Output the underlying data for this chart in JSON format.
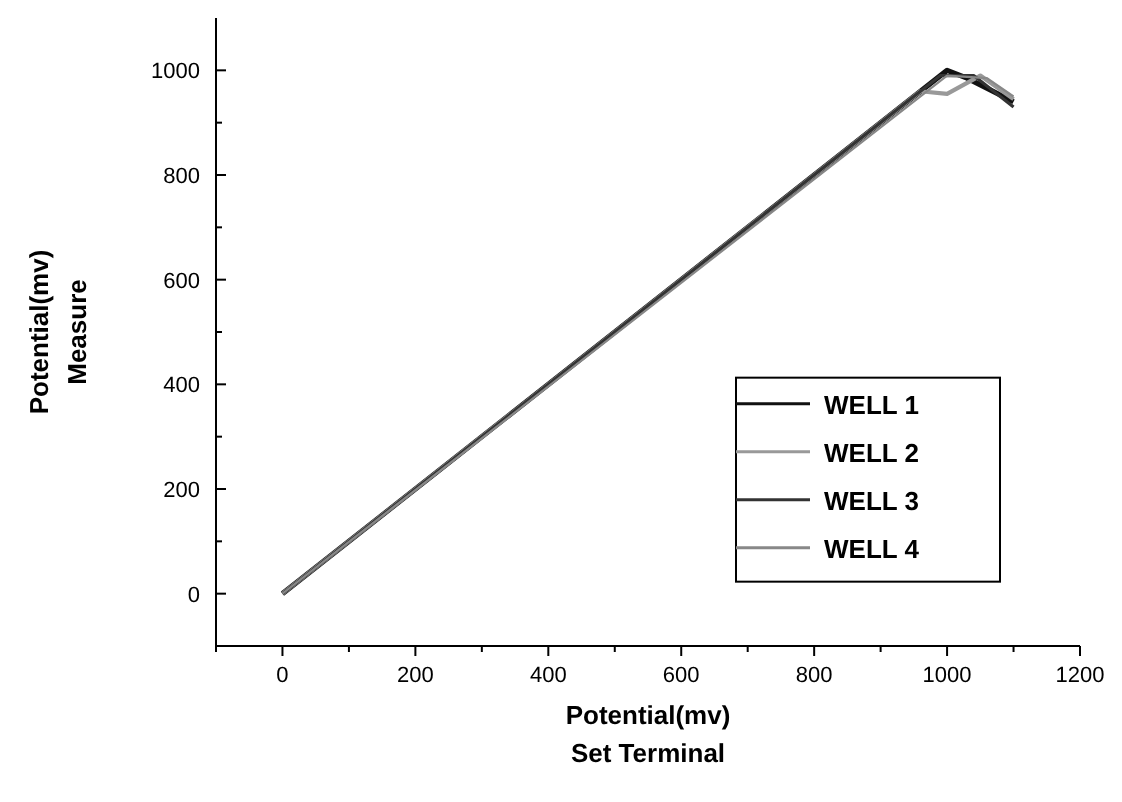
{
  "chart_data": {
    "type": "line",
    "xlabel": "Potential(mv)\nSet Terminal",
    "ylabel": "Potential(mv)\nMeasure",
    "xlim": [
      -100,
      1200
    ],
    "ylim": [
      -100,
      1100
    ],
    "xticks": [
      {
        "value": -100,
        "label": null
      },
      0,
      {
        "value": 100,
        "label": null
      },
      200,
      {
        "value": 300,
        "label": null
      },
      400,
      {
        "value": 500,
        "label": null
      },
      600,
      {
        "value": 700,
        "label": null
      },
      800,
      {
        "value": 900,
        "label": null
      },
      1000,
      {
        "value": 1100,
        "label": null
      },
      1200
    ],
    "yticks": [
      {
        "value": -100,
        "label": null
      },
      0,
      {
        "value": 100,
        "label": null
      },
      200,
      {
        "value": 300,
        "label": null
      },
      400,
      {
        "value": 500,
        "label": null
      },
      600,
      {
        "value": 700,
        "label": null
      },
      800,
      {
        "value": 900,
        "label": null
      },
      1000
    ],
    "grid": false,
    "legend": "bottom right",
    "marker": "none",
    "line_style": "solid",
    "series": [
      {
        "name": "WELL 1",
        "color": "#111111",
        "x": [
          0,
          1000,
          1030,
          1100
        ],
        "values": [
          0,
          1000,
          985,
          940
        ]
      },
      {
        "name": "WELL 2",
        "color": "#999999",
        "x": [
          0,
          960,
          1000,
          1050,
          1100
        ],
        "values": [
          0,
          960,
          955,
          990,
          945
        ]
      },
      {
        "name": "WELL 3",
        "color": "#333333",
        "x": [
          0,
          990,
          1040,
          1100
        ],
        "values": [
          0,
          990,
          990,
          930
        ]
      },
      {
        "name": "WELL 4",
        "color": "#888888",
        "x": [
          0,
          1000,
          1060,
          1100
        ],
        "values": [
          0,
          990,
          985,
          950
        ]
      }
    ]
  }
}
